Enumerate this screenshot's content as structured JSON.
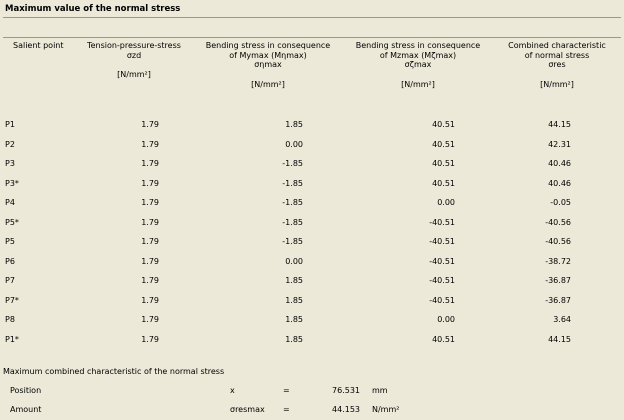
{
  "title": "Maximum value of the normal stress",
  "headers": [
    {
      "label": "Salient point",
      "unit": ""
    },
    {
      "label": "Tension-pressure-stress σzd",
      "unit": "[N/mm²]"
    },
    {
      "label": "Bending stress in consequence of Mymax (Mηmax) σηmax",
      "unit": "[N/mm²]"
    },
    {
      "label": "Bending stress in consequence of Mzmax (Mζmax) σζmax",
      "unit": "[N/mm²]"
    },
    {
      "label": "Combined characteristic of normal stress σres",
      "unit": "[N/mm²]"
    }
  ],
  "rows": [
    [
      "P1",
      "1.79",
      "1.85",
      "40.51",
      "44.15"
    ],
    [
      "P2",
      "1.79",
      "0.00",
      "40.51",
      "42.31"
    ],
    [
      "P3",
      "1.79",
      "-1.85",
      "40.51",
      "40.46"
    ],
    [
      "P3*",
      "1.79",
      "-1.85",
      "40.51",
      "40.46"
    ],
    [
      "P4",
      "1.79",
      "-1.85",
      "0.00",
      "-0.05"
    ],
    [
      "P5*",
      "1.79",
      "-1.85",
      "-40.51",
      "-40.56"
    ],
    [
      "P5",
      "1.79",
      "-1.85",
      "-40.51",
      "-40.56"
    ],
    [
      "P6",
      "1.79",
      "0.00",
      "-40.51",
      "-38.72"
    ],
    [
      "P7",
      "1.79",
      "1.85",
      "-40.51",
      "-36.87"
    ],
    [
      "P7*",
      "1.79",
      "1.85",
      "-40.51",
      "-36.87"
    ],
    [
      "P8",
      "1.79",
      "1.85",
      "0.00",
      "3.64"
    ],
    [
      "P1*",
      "1.79",
      "1.85",
      "40.51",
      "44.15"
    ]
  ],
  "summary": {
    "title": "Maximum combined characteristic of the normal stress",
    "position": {
      "label": "Position",
      "symbol": "x",
      "eq": "=",
      "value": "76.531",
      "unit": "mm"
    },
    "amount": {
      "label": "Amount",
      "symbol": "σresmax",
      "eq": "=",
      "value": "44.153",
      "unit": "N/mm²"
    }
  }
}
